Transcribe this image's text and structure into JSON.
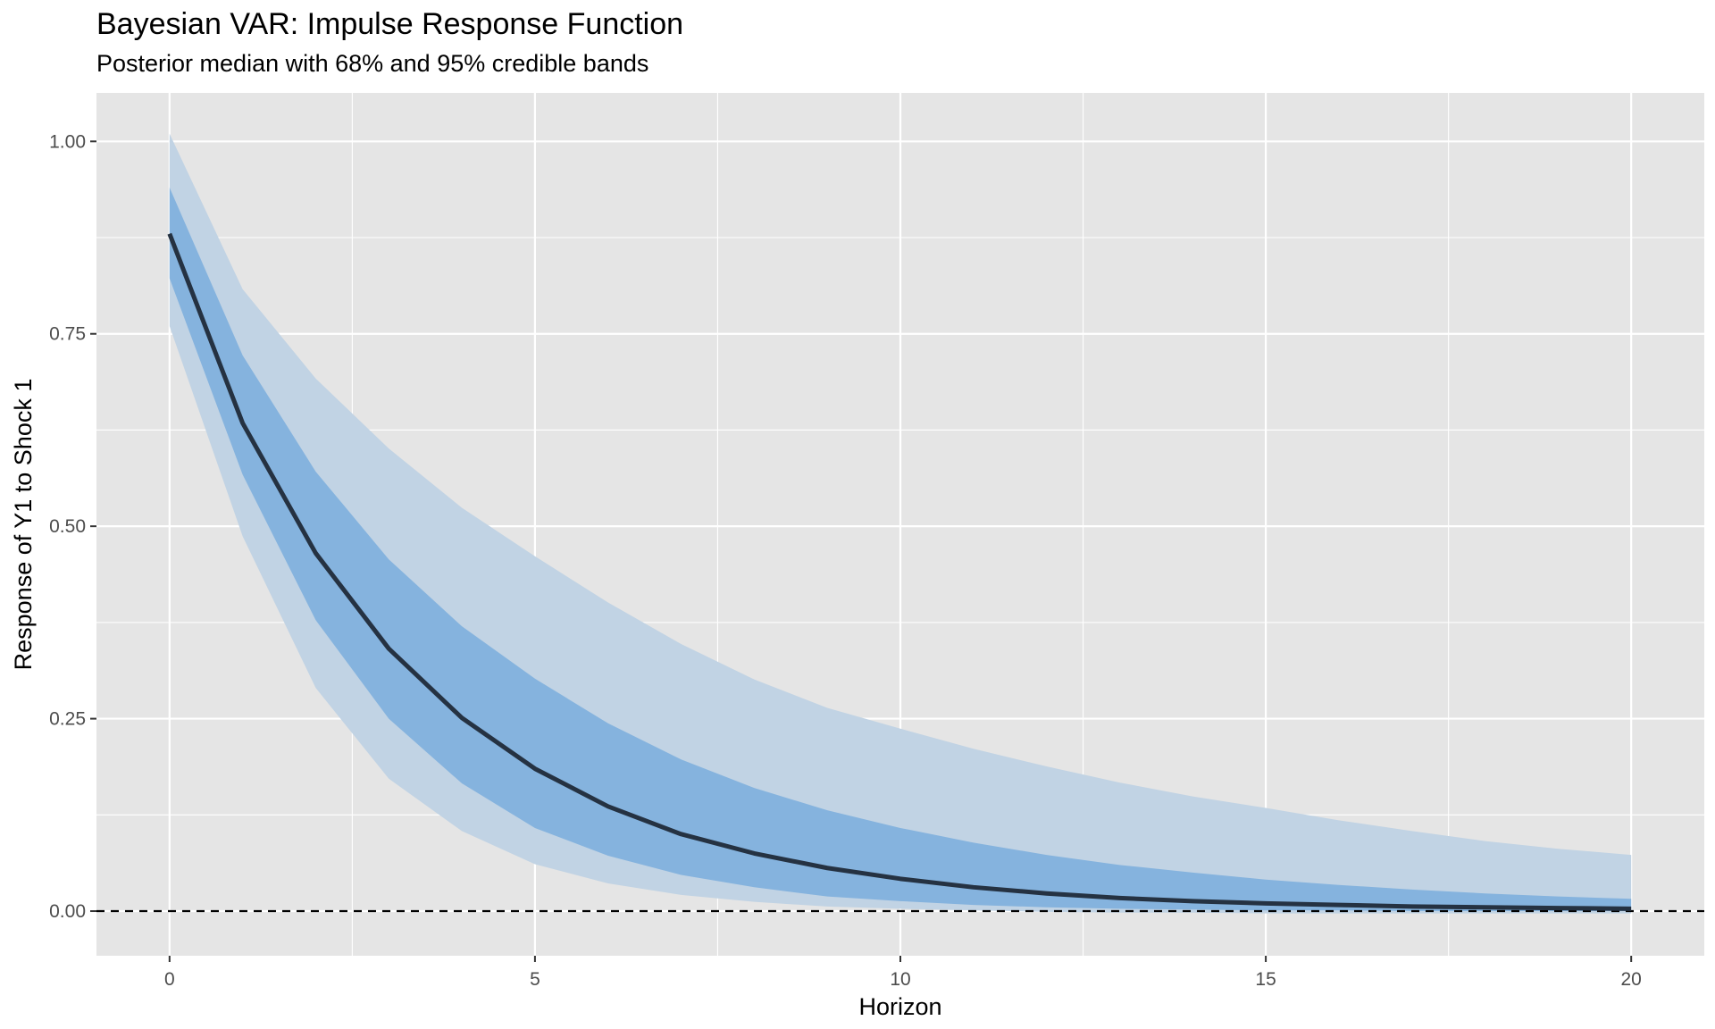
{
  "chart_data": {
    "type": "line",
    "title": "Bayesian VAR: Impulse Response Function",
    "subtitle": "Posterior median with 68% and 95% credible bands",
    "xlabel": "Horizon",
    "ylabel": "Response of Y1 to Shock 1",
    "xlim": [
      -1,
      21
    ],
    "ylim": [
      -0.058,
      1.063
    ],
    "x_ticks": [
      0,
      5,
      10,
      15,
      20
    ],
    "y_ticks": [
      0.0,
      0.25,
      0.5,
      0.75,
      1.0
    ],
    "x_tick_labels": [
      "0",
      "5",
      "10",
      "15",
      "20"
    ],
    "y_tick_labels": [
      "0.00",
      "0.25",
      "0.50",
      "0.75",
      "1.00"
    ],
    "grid": true,
    "reference_line": {
      "y": 0,
      "style": "dashed"
    },
    "x": [
      0,
      1,
      2,
      3,
      4,
      5,
      6,
      7,
      8,
      9,
      10,
      11,
      12,
      13,
      14,
      15,
      16,
      17,
      18,
      19,
      20
    ],
    "median": [
      0.88,
      0.634,
      0.465,
      0.341,
      0.251,
      0.185,
      0.136,
      0.1,
      0.075,
      0.056,
      0.042,
      0.031,
      0.023,
      0.017,
      0.013,
      0.01,
      0.008,
      0.006,
      0.005,
      0.004,
      0.003
    ],
    "band68_lower": [
      0.822,
      0.567,
      0.378,
      0.25,
      0.166,
      0.108,
      0.072,
      0.047,
      0.031,
      0.019,
      0.013,
      0.008,
      0.005,
      0.003,
      0.002,
      0.001,
      0.001,
      0.0,
      0.0,
      0.0,
      0.0
    ],
    "band68_upper": [
      0.94,
      0.722,
      0.571,
      0.457,
      0.37,
      0.302,
      0.244,
      0.197,
      0.16,
      0.131,
      0.108,
      0.089,
      0.073,
      0.06,
      0.05,
      0.041,
      0.034,
      0.028,
      0.023,
      0.019,
      0.016
    ],
    "band95_lower": [
      0.76,
      0.487,
      0.29,
      0.172,
      0.104,
      0.061,
      0.036,
      0.021,
      0.012,
      0.006,
      0.003,
      0.001,
      -0.001,
      -0.002,
      -0.002,
      -0.003,
      -0.003,
      -0.003,
      -0.003,
      -0.003,
      -0.003
    ],
    "band95_upper": [
      1.01,
      0.808,
      0.692,
      0.601,
      0.524,
      0.461,
      0.401,
      0.347,
      0.301,
      0.264,
      0.237,
      0.211,
      0.188,
      0.167,
      0.149,
      0.134,
      0.118,
      0.104,
      0.091,
      0.081,
      0.073
    ],
    "colors": {
      "panel_background": "#e5e5e5",
      "grid": "#ffffff",
      "band95": "#c1d3e4",
      "band68": "#85b3de",
      "median_line": "#253242",
      "zero_line": "#000000"
    }
  }
}
